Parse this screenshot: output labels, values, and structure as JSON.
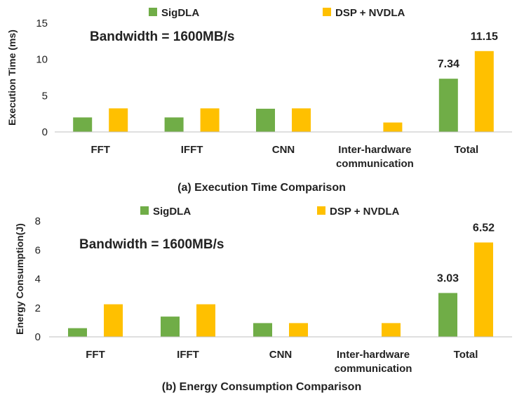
{
  "colors": {
    "sigdla": "#70AD47",
    "dsp_nvdla": "#FFC000",
    "axis": "#BFBFBF"
  },
  "chart_data": [
    {
      "type": "bar",
      "title": "(a) Execution Time Comparison",
      "annotation": "Bandwidth = 1600MB/s",
      "xlabel": "",
      "ylabel": "Execution Time (ms)",
      "ylim": [
        0,
        15
      ],
      "yticks": [
        0,
        5,
        10,
        15
      ],
      "legend_position": "top",
      "categories": [
        [
          "FFT"
        ],
        [
          "IFFT"
        ],
        [
          "CNN"
        ],
        [
          "Inter-hardware",
          "communication"
        ],
        [
          "Total"
        ]
      ],
      "series": [
        {
          "name": "SigDLA",
          "color_key": "sigdla",
          "values": [
            2.0,
            2.0,
            3.2,
            0,
            7.34
          ]
        },
        {
          "name": "DSP + NVDLA",
          "color_key": "dsp_nvdla",
          "values": [
            3.25,
            3.25,
            3.25,
            1.3,
            11.15
          ]
        }
      ],
      "data_labels": [
        {
          "series": 0,
          "index": 4,
          "text": "7.34"
        },
        {
          "series": 1,
          "index": 4,
          "text": "11.15"
        }
      ]
    },
    {
      "type": "bar",
      "title": "(b) Energy Consumption Comparison",
      "annotation": "Bandwidth = 1600MB/s",
      "xlabel": "",
      "ylabel": "Energy Consumption(J)",
      "ylim": [
        0,
        8
      ],
      "yticks": [
        0,
        2,
        4,
        6,
        8
      ],
      "legend_position": "top",
      "categories": [
        [
          "FFT"
        ],
        [
          "IFFT"
        ],
        [
          "CNN"
        ],
        [
          "Inter-hardware",
          "communication"
        ],
        [
          "Total"
        ]
      ],
      "series": [
        {
          "name": "SigDLA",
          "color_key": "sigdla",
          "values": [
            0.6,
            1.4,
            0.95,
            0,
            3.03
          ]
        },
        {
          "name": "DSP + NVDLA",
          "color_key": "dsp_nvdla",
          "values": [
            2.25,
            2.25,
            0.95,
            0.95,
            6.52
          ]
        }
      ],
      "data_labels": [
        {
          "series": 0,
          "index": 4,
          "text": "3.03"
        },
        {
          "series": 1,
          "index": 4,
          "text": "6.52"
        }
      ]
    }
  ]
}
